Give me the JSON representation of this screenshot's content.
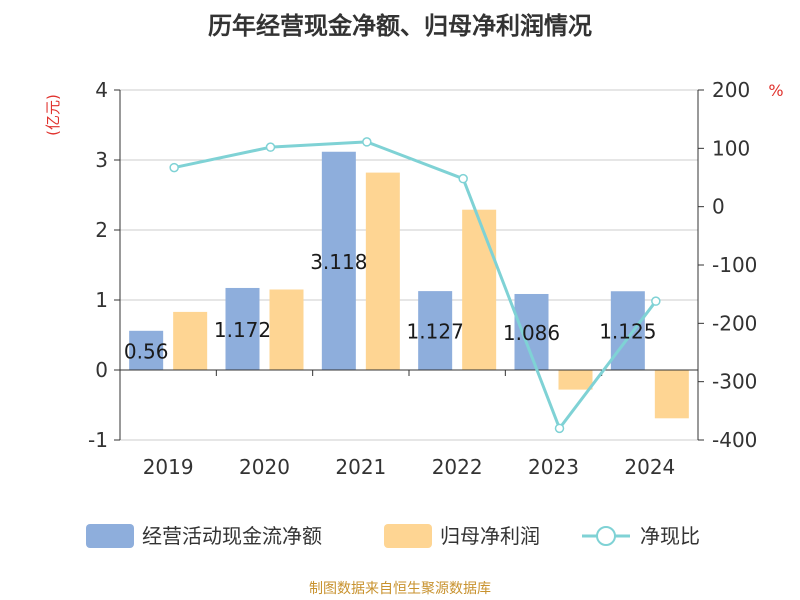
{
  "chart_data": {
    "type": "bar",
    "title": "历年经营现金净额、归母净利润情况",
    "categories": [
      "2019",
      "2020",
      "2021",
      "2022",
      "2023",
      "2024"
    ],
    "series": [
      {
        "name": "经营活动现金流净额",
        "type": "bar",
        "axis": "left",
        "color": "#8eaedc",
        "values": [
          0.56,
          1.172,
          3.118,
          1.127,
          1.086,
          1.125
        ],
        "labels": [
          "0.56",
          "1.172",
          "3.118",
          "1.127",
          "1.086",
          "1.125"
        ]
      },
      {
        "name": "归母净利润",
        "type": "bar",
        "axis": "left",
        "color": "#fed593",
        "values": [
          0.83,
          1.15,
          2.82,
          2.29,
          -0.28,
          -0.69
        ]
      },
      {
        "name": "净现比",
        "type": "line",
        "axis": "right",
        "color": "#7fd2d5",
        "values": [
          67,
          102,
          111,
          48,
          -380,
          -162
        ]
      }
    ],
    "y_left": {
      "label": "(亿元)",
      "min": -1,
      "max": 4,
      "ticks": [
        "-1",
        "0",
        "1",
        "2",
        "3",
        "4"
      ]
    },
    "y_right": {
      "label": "%",
      "min": -400,
      "max": 200,
      "ticks": [
        "-400",
        "-300",
        "-200",
        "-100",
        "0",
        "100",
        "200"
      ]
    },
    "grid": true,
    "legend_position": "bottom",
    "colors": {
      "axis_label_red": "#e0322d",
      "source": "#c8922e",
      "text": "#333333"
    },
    "source": "制图数据来自恒生聚源数据库"
  }
}
